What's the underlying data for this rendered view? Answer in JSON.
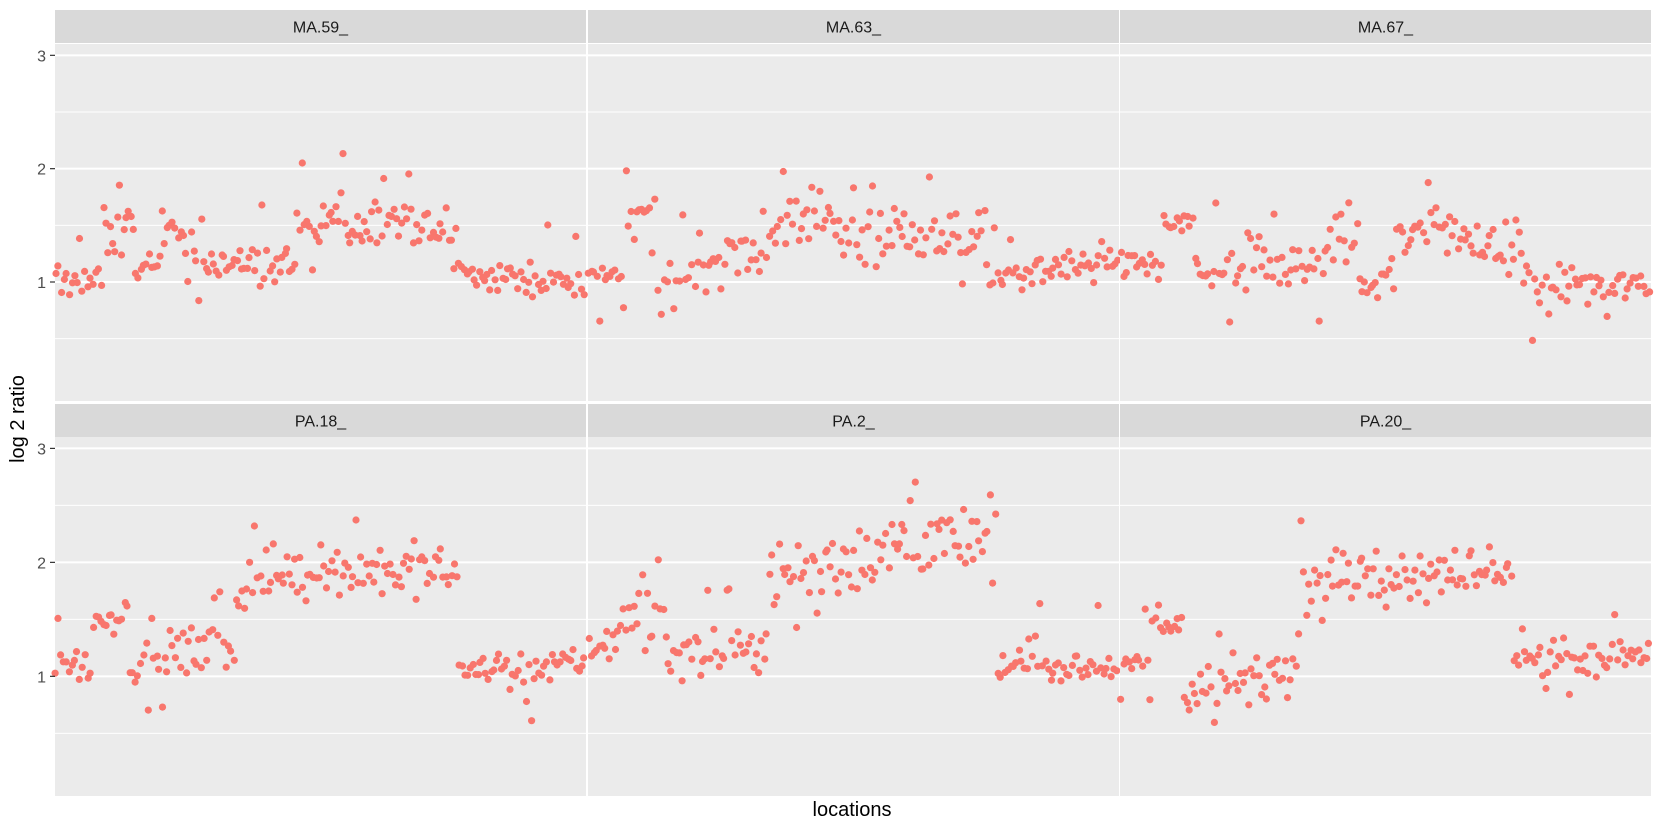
{
  "chart_data": {
    "type": "scatter",
    "layout": "facet-grid 2x3",
    "xlabel": "locations",
    "ylabel": "log 2 ratio",
    "ylim": [
      -0.05,
      3.1
    ],
    "xlim": [
      0,
      100
    ],
    "y_ticks": [
      1,
      2,
      3
    ],
    "y_tick_labels": [
      "1",
      "2",
      "3"
    ],
    "x_ticks": [],
    "grid": true,
    "point_color": "#F8766D",
    "panel_bg": "#EBEBEB",
    "strip_bg": "#D9D9D9",
    "facets": [
      {
        "label": "MA.59_",
        "segments": [
          {
            "from": 0,
            "to": 9,
            "y0": 1.0,
            "y1": 1.02,
            "noise": 0.07,
            "n": 18
          },
          {
            "from": 9,
            "to": 15,
            "y0": 1.3,
            "y1": 1.6,
            "noise": 0.09,
            "n": 14
          },
          {
            "from": 15,
            "to": 20,
            "y0": 1.05,
            "y1": 1.2,
            "noise": 0.08,
            "n": 10
          },
          {
            "from": 20,
            "to": 26,
            "y0": 1.55,
            "y1": 1.25,
            "noise": 0.09,
            "n": 12
          },
          {
            "from": 26,
            "to": 46,
            "y0": 1.2,
            "y1": 1.12,
            "noise": 0.1,
            "n": 42
          },
          {
            "from": 46,
            "to": 55,
            "y0": 1.3,
            "y1": 1.65,
            "noise": 0.1,
            "n": 20
          },
          {
            "from": 55,
            "to": 66,
            "y0": 1.45,
            "y1": 1.6,
            "noise": 0.1,
            "n": 24
          },
          {
            "from": 66,
            "to": 75,
            "y0": 1.55,
            "y1": 1.35,
            "noise": 0.07,
            "n": 18
          },
          {
            "from": 75,
            "to": 100,
            "y0": 1.07,
            "y1": 1.0,
            "noise": 0.07,
            "n": 52
          }
        ]
      },
      {
        "label": "MA.63_",
        "segments": [
          {
            "from": 0,
            "to": 7,
            "y0": 1.07,
            "y1": 1.07,
            "noise": 0.04,
            "n": 14
          },
          {
            "from": 7,
            "to": 13,
            "y0": 1.45,
            "y1": 1.5,
            "noise": 0.12,
            "n": 12
          },
          {
            "from": 13,
            "to": 20,
            "y0": 0.95,
            "y1": 1.1,
            "noise": 0.1,
            "n": 12
          },
          {
            "from": 20,
            "to": 35,
            "y0": 1.2,
            "y1": 1.3,
            "noise": 0.12,
            "n": 30
          },
          {
            "from": 35,
            "to": 47,
            "y0": 1.5,
            "y1": 1.6,
            "noise": 0.12,
            "n": 24
          },
          {
            "from": 47,
            "to": 62,
            "y0": 1.3,
            "y1": 1.5,
            "noise": 0.14,
            "n": 30
          },
          {
            "from": 62,
            "to": 75,
            "y0": 1.35,
            "y1": 1.5,
            "noise": 0.1,
            "n": 26
          },
          {
            "from": 75,
            "to": 100,
            "y0": 1.0,
            "y1": 1.22,
            "noise": 0.07,
            "n": 50
          }
        ]
      },
      {
        "label": "MA.67_",
        "segments": [
          {
            "from": 0,
            "to": 8,
            "y0": 1.2,
            "y1": 1.1,
            "noise": 0.07,
            "n": 16
          },
          {
            "from": 8,
            "to": 14,
            "y0": 1.5,
            "y1": 1.5,
            "noise": 0.09,
            "n": 12
          },
          {
            "from": 14,
            "to": 24,
            "y0": 1.1,
            "y1": 1.0,
            "noise": 0.1,
            "n": 20
          },
          {
            "from": 24,
            "to": 34,
            "y0": 1.25,
            "y1": 1.1,
            "noise": 0.12,
            "n": 20
          },
          {
            "from": 34,
            "to": 45,
            "y0": 1.05,
            "y1": 1.5,
            "noise": 0.14,
            "n": 22
          },
          {
            "from": 45,
            "to": 52,
            "y0": 0.95,
            "y1": 1.1,
            "noise": 0.1,
            "n": 14
          },
          {
            "from": 52,
            "to": 60,
            "y0": 1.35,
            "y1": 1.6,
            "noise": 0.12,
            "n": 16
          },
          {
            "from": 60,
            "to": 76,
            "y0": 1.4,
            "y1": 1.3,
            "noise": 0.12,
            "n": 32
          },
          {
            "from": 76,
            "to": 100,
            "y0": 0.98,
            "y1": 0.95,
            "noise": 0.08,
            "n": 48
          }
        ]
      },
      {
        "label": "PA.18_",
        "segments": [
          {
            "from": 0,
            "to": 7,
            "y0": 1.12,
            "y1": 1.1,
            "noise": 0.07,
            "n": 14
          },
          {
            "from": 7,
            "to": 14,
            "y0": 1.5,
            "y1": 1.55,
            "noise": 0.08,
            "n": 14
          },
          {
            "from": 14,
            "to": 34,
            "y0": 1.1,
            "y1": 1.3,
            "noise": 0.1,
            "n": 40
          },
          {
            "from": 34,
            "to": 46,
            "y0": 1.8,
            "y1": 1.95,
            "noise": 0.12,
            "n": 24
          },
          {
            "from": 46,
            "to": 76,
            "y0": 1.95,
            "y1": 1.9,
            "noise": 0.12,
            "n": 60
          },
          {
            "from": 76,
            "to": 100,
            "y0": 1.08,
            "y1": 1.1,
            "noise": 0.07,
            "n": 48
          }
        ]
      },
      {
        "label": "PA.2_",
        "segments": [
          {
            "from": 0,
            "to": 4,
            "y0": 1.25,
            "y1": 1.3,
            "noise": 0.06,
            "n": 8
          },
          {
            "from": 4,
            "to": 15,
            "y0": 1.45,
            "y1": 1.6,
            "noise": 0.16,
            "n": 22
          },
          {
            "from": 15,
            "to": 34,
            "y0": 1.15,
            "y1": 1.3,
            "noise": 0.1,
            "n": 38
          },
          {
            "from": 34,
            "to": 50,
            "y0": 1.9,
            "y1": 2.0,
            "noise": 0.14,
            "n": 32
          },
          {
            "from": 50,
            "to": 77,
            "y0": 2.1,
            "y1": 2.2,
            "noise": 0.14,
            "n": 54
          },
          {
            "from": 77,
            "to": 100,
            "y0": 1.08,
            "y1": 1.1,
            "noise": 0.07,
            "n": 46
          }
        ]
      },
      {
        "label": "PA.20_",
        "segments": [
          {
            "from": 0,
            "to": 6,
            "y0": 1.1,
            "y1": 1.15,
            "noise": 0.07,
            "n": 12
          },
          {
            "from": 6,
            "to": 12,
            "y0": 1.5,
            "y1": 1.45,
            "noise": 0.08,
            "n": 12
          },
          {
            "from": 12,
            "to": 34,
            "y0": 0.88,
            "y1": 1.05,
            "noise": 0.12,
            "n": 44
          },
          {
            "from": 34,
            "to": 74,
            "y0": 1.9,
            "y1": 1.95,
            "noise": 0.12,
            "n": 80
          },
          {
            "from": 74,
            "to": 100,
            "y0": 1.15,
            "y1": 1.18,
            "noise": 0.08,
            "n": 52
          }
        ]
      }
    ]
  }
}
